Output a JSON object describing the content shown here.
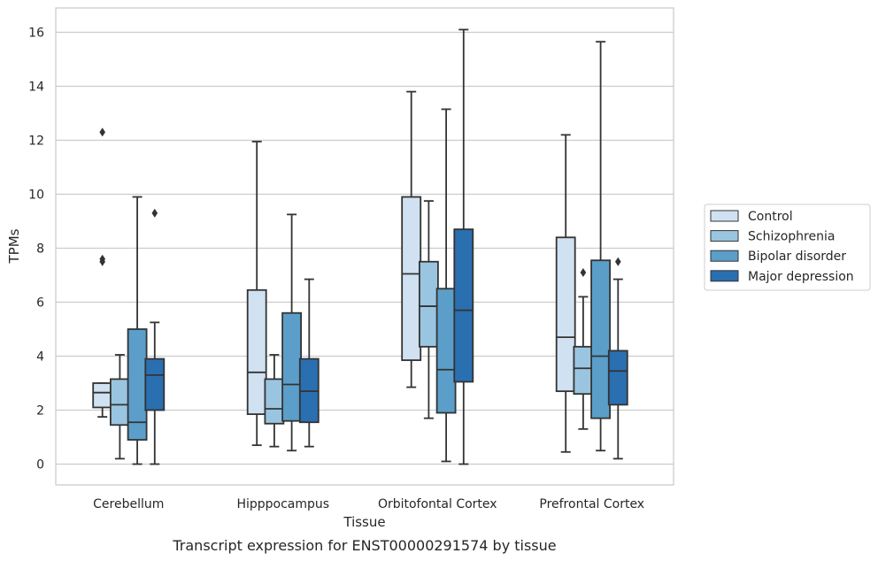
{
  "chart_data": {
    "type": "box",
    "xlabel": "Tissue",
    "ylabel": "TPMs",
    "caption": "Transcript expression for ENST00000291574 by tissue",
    "ylim": [
      -0.8,
      16.85
    ],
    "yticks": [
      0,
      2,
      4,
      6,
      8,
      10,
      12,
      14,
      16
    ],
    "grid": "horizontal",
    "legend_position": "right",
    "categories": [
      "Cerebellum",
      "Hipppocampus",
      "Orbitofontal Cortex",
      "Prefrontal Cortex"
    ],
    "series": [
      {
        "name": "Control",
        "color": "#d0e1f1",
        "boxes": [
          {
            "whisker_low": 1.75,
            "q1": 2.1,
            "median": 2.65,
            "q3": 3.0,
            "whisker_high": 3.0,
            "outliers": [
              12.3,
              7.6,
              7.5
            ]
          },
          {
            "whisker_low": 0.7,
            "q1": 1.85,
            "median": 3.4,
            "q3": 6.45,
            "whisker_high": 11.95,
            "outliers": []
          },
          {
            "whisker_low": 2.85,
            "q1": 3.85,
            "median": 7.05,
            "q3": 9.9,
            "whisker_high": 13.8,
            "outliers": []
          },
          {
            "whisker_low": 0.45,
            "q1": 2.7,
            "median": 4.7,
            "q3": 8.4,
            "whisker_high": 12.2,
            "outliers": []
          }
        ]
      },
      {
        "name": "Schizophrenia",
        "color": "#9ac5e0",
        "boxes": [
          {
            "whisker_low": 0.2,
            "q1": 1.45,
            "median": 2.2,
            "q3": 3.15,
            "whisker_high": 4.05,
            "outliers": []
          },
          {
            "whisker_low": 0.65,
            "q1": 1.5,
            "median": 2.05,
            "q3": 3.15,
            "whisker_high": 4.05,
            "outliers": []
          },
          {
            "whisker_low": 1.7,
            "q1": 4.35,
            "median": 5.85,
            "q3": 7.5,
            "whisker_high": 9.75,
            "outliers": []
          },
          {
            "whisker_low": 1.3,
            "q1": 2.6,
            "median": 3.55,
            "q3": 4.35,
            "whisker_high": 6.2,
            "outliers": [
              7.1
            ]
          }
        ]
      },
      {
        "name": "Bipolar disorder",
        "color": "#5b9ec9",
        "boxes": [
          {
            "whisker_low": 0.0,
            "q1": 0.9,
            "median": 1.55,
            "q3": 5.0,
            "whisker_high": 9.9,
            "outliers": []
          },
          {
            "whisker_low": 0.5,
            "q1": 1.6,
            "median": 2.95,
            "q3": 5.6,
            "whisker_high": 9.25,
            "outliers": []
          },
          {
            "whisker_low": 0.1,
            "q1": 1.9,
            "median": 3.5,
            "q3": 6.5,
            "whisker_high": 13.15,
            "outliers": []
          },
          {
            "whisker_low": 0.5,
            "q1": 1.7,
            "median": 4.0,
            "q3": 7.55,
            "whisker_high": 15.65,
            "outliers": []
          }
        ]
      },
      {
        "name": "Major depression",
        "color": "#2a6fb0",
        "boxes": [
          {
            "whisker_low": 0.0,
            "q1": 2.0,
            "median": 3.3,
            "q3": 3.9,
            "whisker_high": 5.25,
            "outliers": [
              9.3
            ]
          },
          {
            "whisker_low": 0.65,
            "q1": 1.55,
            "median": 2.7,
            "q3": 3.9,
            "whisker_high": 6.85,
            "outliers": []
          },
          {
            "whisker_low": 0.0,
            "q1": 3.05,
            "median": 5.7,
            "q3": 8.7,
            "whisker_high": 16.1,
            "outliers": []
          },
          {
            "whisker_low": 0.2,
            "q1": 2.2,
            "median": 3.45,
            "q3": 4.2,
            "whisker_high": 6.85,
            "outliers": [
              7.5
            ]
          }
        ]
      }
    ]
  },
  "style": {
    "line_color": "#333333",
    "grid_color": "#cccccc",
    "frame_color": "#cccccc"
  }
}
